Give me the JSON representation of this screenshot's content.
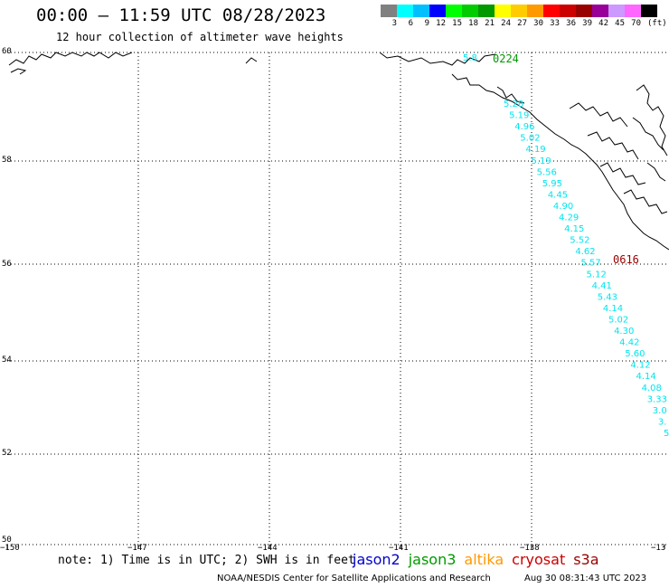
{
  "header": {
    "title": "00:00 – 11:59 UTC 08/28/2023",
    "subtitle": "12 hour collection of altimeter wave heights"
  },
  "legend": {
    "unit": "(ft)",
    "colors": [
      "#808080",
      "#00ffff",
      "#00bfff",
      "#0000ff",
      "#00ff00",
      "#00cc00",
      "#009900",
      "#ffff00",
      "#ffcc00",
      "#ff9900",
      "#ff0000",
      "#cc0000",
      "#990000",
      "#990099",
      "#cc99ff",
      "#ff66ff",
      "#000000"
    ],
    "labels": [
      "3",
      "6",
      "9",
      "12",
      "15",
      "18",
      "21",
      "24",
      "27",
      "30",
      "33",
      "36",
      "39",
      "42",
      "45",
      "70"
    ]
  },
  "axes": {
    "lat_labels": [
      "60",
      "58",
      "56",
      "54",
      "52",
      "50"
    ],
    "lon_labels": [
      "−150",
      "−147",
      "−144",
      "−141",
      "−138",
      "−13"
    ]
  },
  "passes": [
    {
      "label": "0224",
      "color": "#009900"
    },
    {
      "label": "0616",
      "color": "#990000"
    }
  ],
  "track": {
    "color": "#00e5ee",
    "values": [
      "5.28",
      "5.19",
      "4.96",
      "5.02",
      "4.19",
      "5.19",
      "5.56",
      "5.95",
      "4.45",
      "4.90",
      "4.29",
      "4.15",
      "5.52",
      "4.62",
      "5.57",
      "5.12",
      "4.41",
      "5.43",
      "4.14",
      "5.02",
      "4.30",
      "4.42",
      "5.60",
      "4.12",
      "4.14",
      "4.08",
      "3.33",
      "3.0",
      "3.",
      "5"
    ],
    "partial_values": [
      "5.8"
    ]
  },
  "footer": {
    "note": "note: 1) Time is in UTC; 2) SWH is in feet",
    "satellites": [
      {
        "name": "jason2",
        "color": "#0000cc"
      },
      {
        "name": "jason3",
        "color": "#009900"
      },
      {
        "name": "altika",
        "color": "#ff9900"
      },
      {
        "name": "cryosat",
        "color": "#cc0000"
      },
      {
        "name": "s3a",
        "color": "#990000"
      }
    ],
    "credit": "NOAA/NESDIS Center for Satellite Applications and Research",
    "timestamp": "Aug 30 08:31:43 UTC 2023"
  }
}
